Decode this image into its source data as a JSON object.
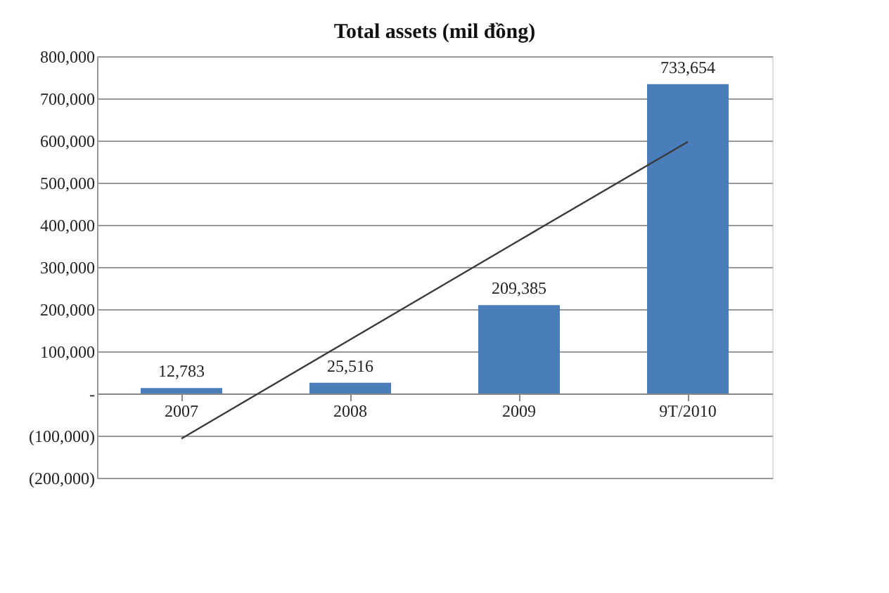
{
  "chart_data": {
    "type": "bar",
    "title": "Total assets (mil đồng)",
    "categories": [
      "2007",
      "2008",
      "2009",
      "9T/2010"
    ],
    "series": [
      {
        "color": "#4a7ebb",
        "values": [
          12783,
          25516,
          209385,
          733654
        ],
        "value_labels": [
          "12,783",
          "25,516",
          "209,385",
          "733,654"
        ]
      },
      {
        "type": "line",
        "color": "#3a3a3a",
        "values": [
          -107000,
          128000,
          363000,
          597000
        ]
      }
    ],
    "ylim": [
      -200000,
      800000
    ],
    "yticks": [
      {
        "value": -200000,
        "label": "(200,000)"
      },
      {
        "value": -100000,
        "label": "(100,000)"
      },
      {
        "value": 0,
        "label": "-"
      },
      "100,000",
      "200,000",
      "300,000",
      "400,000",
      "500,000",
      "600,000",
      "700,000",
      "800,000"
    ],
    "grid": "y"
  }
}
